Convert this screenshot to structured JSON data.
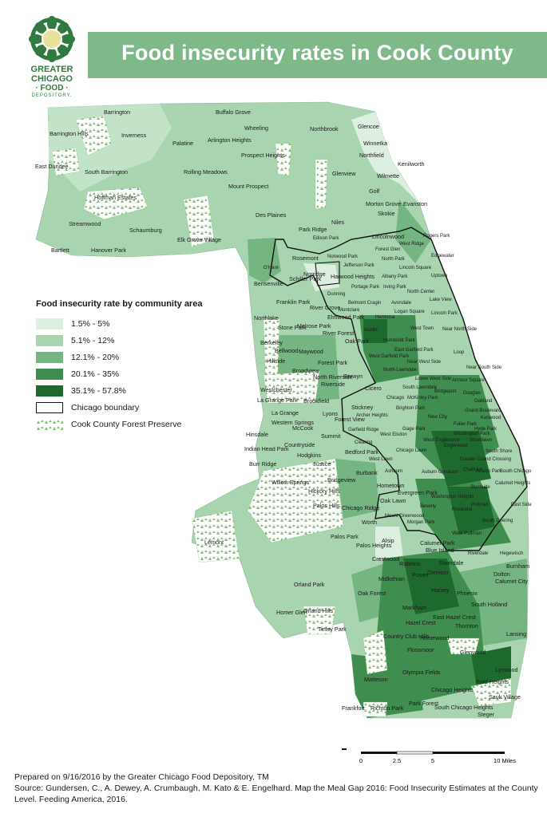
{
  "header": {
    "title": "Food insecurity rates in Cook County",
    "logo_lines": [
      "GREATER",
      "CHICAGO",
      "· FOOD ·",
      "DEPOSITORY."
    ],
    "banner_color": "#7fb98a"
  },
  "legend": {
    "title": "Food insecurity rate by community area",
    "items": [
      {
        "label": "1.5% - 5%",
        "color": "#dcefe0",
        "icon": "swatch"
      },
      {
        "label": "5.1% - 12%",
        "color": "#a8d5b0",
        "icon": "swatch"
      },
      {
        "label": "12.1% - 20%",
        "color": "#74b582",
        "icon": "swatch"
      },
      {
        "label": "20.1% - 35%",
        "color": "#3f8d4f",
        "icon": "swatch"
      },
      {
        "label": "35.1% - 57.8%",
        "color": "#1e6a2e",
        "icon": "swatch"
      },
      {
        "label": "Chicago boundary",
        "color": "#ffffff",
        "icon": "outline-swatch"
      },
      {
        "label": "Cook County Forest Preserve",
        "color": "#7cc36b",
        "icon": "forest-pattern-swatch"
      }
    ]
  },
  "map_labels": {
    "suburbs": [
      "Barrington",
      "Buffalo Grove",
      "Wheeling",
      "Northbrook",
      "Glencoe",
      "Winnetka",
      "Kenilworth",
      "Wilmette",
      "Barrington Hills",
      "Inverness",
      "Palatine",
      "Arlington Heights",
      "Prospect Heights",
      "Northfield",
      "East Dundee",
      "South Barrington",
      "Rolling Meadows",
      "Mount Prospect",
      "Glenview",
      "Golf",
      "Morton Grove",
      "Skokie",
      "Evanston",
      "Hoffman Estates",
      "Des Plaines",
      "Niles",
      "Streamwood",
      "Schaumburg",
      "Park Ridge",
      "Lincolnwood",
      "Bartlett",
      "Hanover Park",
      "Elk Grove Village",
      "Rosemont",
      "Schiller Park",
      "Norridge",
      "Harwood Heights",
      "Bensenville",
      "Franklin Park",
      "River Grove",
      "Elmwood Park",
      "Northlake",
      "Stone Park",
      "Melrose Park",
      "River Forest",
      "Oak Park",
      "Berkeley",
      "Bellwood",
      "Maywood",
      "Forest Park",
      "Hillside",
      "Broadview",
      "North Riverside",
      "Berwyn",
      "Cicero",
      "Westchester",
      "Riverside",
      "La Grange Park",
      "Brookfield",
      "Stickney",
      "La Grange",
      "Lyons",
      "Forest View",
      "Western Springs",
      "McCook",
      "Summit",
      "Hinsdale",
      "Countryside",
      "Indian Head Park",
      "Hodgkins",
      "Burr Ridge",
      "Justice",
      "Bedford Park",
      "Burbank",
      "Willow Springs",
      "Bridgeview",
      "Hickory Hills",
      "Hometown",
      "Evergreen Park",
      "Oak Lawn",
      "Palos Hills",
      "Chicago Ridge",
      "Worth",
      "Lemont",
      "Palos Park",
      "Palos Heights",
      "Alsip",
      "Calumet Park",
      "Blue Island",
      "Crestwood",
      "Robbins",
      "Riverdale",
      "Dolton",
      "Burnham",
      "Calumet City",
      "Posen",
      "Dixmoor",
      "Midlothian",
      "Harvey",
      "Phoenix",
      "South Holland",
      "Orland Park",
      "Oak Forest",
      "Markham",
      "Homer Glen",
      "Orland Hills",
      "East Hazel Crest",
      "Hazel Crest",
      "Thornton",
      "Lansing",
      "Tinley Park",
      "Country Club Hills",
      "Homewood",
      "Flossmoor",
      "Glenwood",
      "Olympia Fields",
      "Lynwood",
      "Matteson",
      "Chicago Heights",
      "Ford Heights",
      "Park Forest",
      "Sauk Village",
      "Frankfort",
      "Richton Park",
      "South Chicago Heights",
      "Steger"
    ],
    "chicago": [
      "Rogers Park",
      "West Ridge",
      "Edgewater",
      "Edison Park",
      "Forest Glen",
      "North Park",
      "Uptown",
      "Norwood Park",
      "Jefferson Park",
      "Lincoln Square",
      "O'Hare",
      "Albany Park",
      "Portage Park",
      "Irving Park",
      "Dunning",
      "North Center",
      "Lake View",
      "Belmont Cragin",
      "Avondale",
      "Montclare",
      "Logan Square",
      "Lincoln Park",
      "Hermosa",
      "Near North Side",
      "Austin",
      "West Town",
      "Humboldt Park",
      "East Garfield Park",
      "West Garfield Park",
      "Loop",
      "Near West Side",
      "Near South Side",
      "North Lawndale",
      "Lower West Side",
      "South Lawndale",
      "Armour Square",
      "Bridgeport",
      "Douglas",
      "McKinley Park",
      "Oakland",
      "Chicago",
      "Brighton Park",
      "Grand Boulevard",
      "Archer Heights",
      "Kenwood",
      "New City",
      "Fuller Park",
      "Hyde Park",
      "Garfield Ridge",
      "Gage Park",
      "West Elsdon",
      "Washington Park",
      "Clearing",
      "West Englewood",
      "Englewood",
      "Woodlawn",
      "Chicago Lawn",
      "South Shore",
      "Greater Grand Crossing",
      "West Lawn",
      "Ashburn",
      "Auburn Gresham",
      "Chatham",
      "Avalon Park",
      "South Chicago",
      "Calumet Heights",
      "Burnside",
      "Washington Heights",
      "Roseland",
      "Pullman",
      "East Side",
      "Beverly",
      "Mount Greenwood",
      "Morgan Park",
      "South Deering",
      "West Pullman",
      "Riverdale",
      "Hegewisch"
    ]
  },
  "scale_bar": {
    "ticks": [
      "0",
      "2.5",
      "5",
      "10 Miles"
    ]
  },
  "footer": {
    "prepared": "Prepared on 9/16/2016 by the Greater Chicago Food Depository, TM",
    "source": "Source: Gundersen, C., A. Dewey, A. Crumbaugh, M. Kato & E. Engelhard. Map the Meal Gap 2016: Food Insecurity Estimates at the County Level. Feeding America, 2016."
  }
}
